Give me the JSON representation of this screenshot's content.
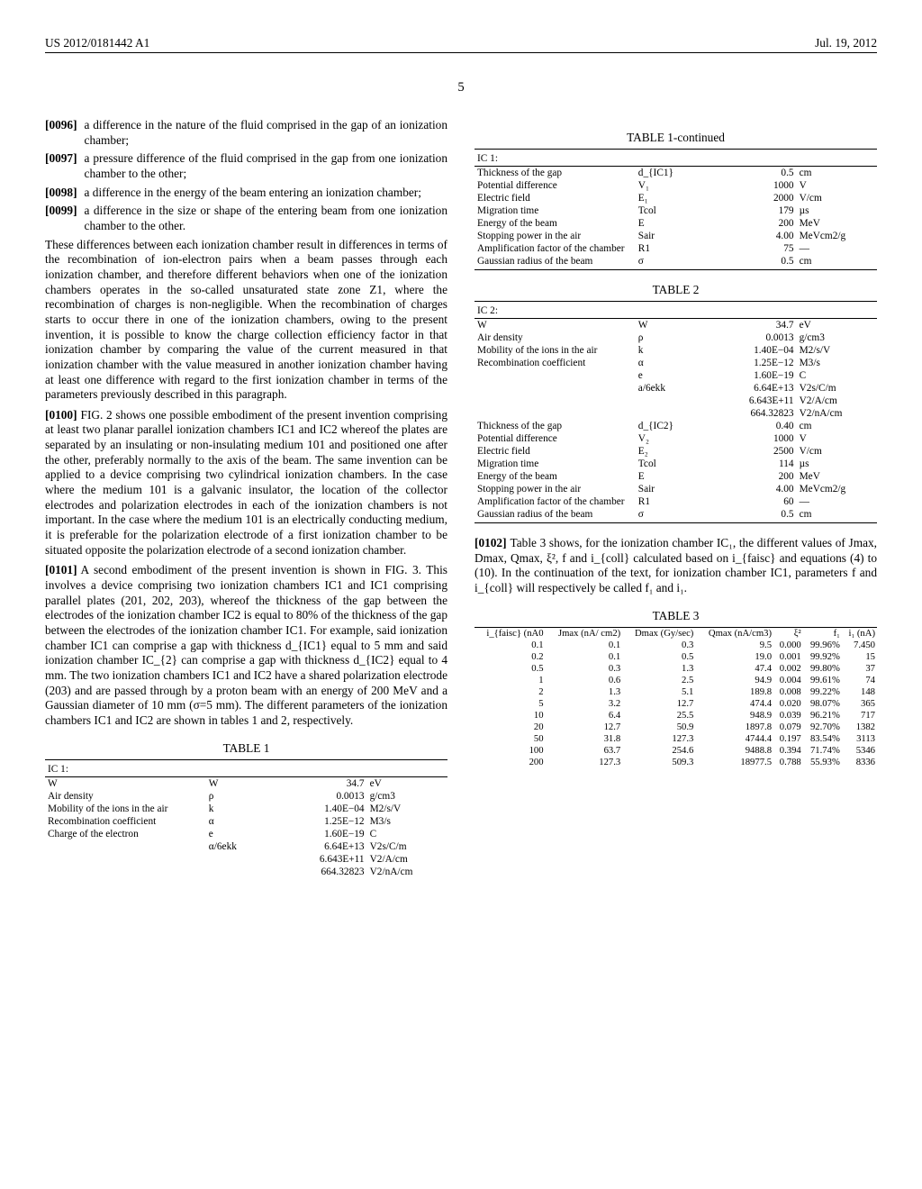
{
  "header": {
    "pub_number": "US 2012/0181442 A1",
    "date": "Jul. 19, 2012"
  },
  "page_number": "5",
  "left_col": {
    "items": [
      {
        "num": "[0096]",
        "text": "a difference in the nature of the fluid comprised in the gap of an ionization chamber;"
      },
      {
        "num": "[0097]",
        "text": "a pressure difference of the fluid comprised in the gap from one ionization chamber to the other;"
      },
      {
        "num": "[0098]",
        "text": "a difference in the energy of the beam entering an ionization chamber;"
      },
      {
        "num": "[0099]",
        "text": "a difference in the size or shape of the entering beam from one ionization chamber to the other."
      }
    ],
    "para1": "These differences between each ionization chamber result in differences in terms of the recombination of ion-electron pairs when a beam passes through each ionization chamber, and therefore different behaviors when one of the ionization chambers operates in the so-called unsaturated state zone Z1, where the recombination of charges is non-negligible. When the recombination of charges starts to occur there in one of the ionization chambers, owing to the present invention, it is possible to know the charge collection efficiency factor in that ionization chamber by comparing the value of the current measured in that ionization chamber with the value measured in another ionization chamber having at least one difference with regard to the first ionization chamber in terms of the parameters previously described in this paragraph.",
    "para2_num": "[0100]",
    "para2": "FIG. 2 shows one possible embodiment of the present invention comprising at least two planar parallel ionization chambers IC1 and IC2 whereof the plates are separated by an insulating or non-insulating medium 101 and positioned one after the other, preferably normally to the axis of the beam. The same invention can be applied to a device comprising two cylindrical ionization chambers. In the case where the medium 101 is a galvanic insulator, the location of the collector electrodes and polarization electrodes in each of the ionization chambers is not important. In the case where the medium 101 is an electrically conducting medium, it is preferable for the polarization electrode of a first ionization chamber to be situated opposite the polarization electrode of a second ionization chamber.",
    "para3_num": "[0101]",
    "para3": "A second embodiment of the present invention is shown in FIG. 3. This involves a device comprising two ionization chambers IC1 and IC1 comprising parallel plates (201, 202, 203), whereof the thickness of the gap between the electrodes of the ionization chamber IC2 is equal to 80% of the thickness of the gap between the electrodes of the ionization chamber IC1. For example, said ionization chamber IC1 can comprise a gap with thickness d_{IC1} equal to 5 mm and said ionization chamber IC_{2} can comprise a gap with thickness d_{IC2} equal to 4 mm. The two ionization chambers IC1 and IC2 have a shared polarization electrode (203) and are passed through by a proton beam with an energy of 200 MeV and a Gaussian diameter of 10 mm (σ=5 mm). The different parameters of the ionization chambers IC1 and IC2 are shown in tables 1 and 2, respectively."
  },
  "table1": {
    "caption": "TABLE 1",
    "section": "IC 1:",
    "rows": [
      [
        "W",
        "W",
        "34.7",
        "eV"
      ],
      [
        "Air density",
        "ρ",
        "0.0013",
        "g/cm3"
      ],
      [
        "Mobility of the ions in the air",
        "k",
        "1.40E−04",
        "M2/s/V"
      ],
      [
        "Recombination coefficient",
        "α",
        "1.25E−12",
        "M3/s"
      ],
      [
        "Charge of the electron",
        "e",
        "1.60E−19",
        "C"
      ],
      [
        "",
        "α/6ekk",
        "6.64E+13",
        "V2s/C/m"
      ],
      [
        "",
        "",
        "6.643E+11",
        "V2/A/cm"
      ],
      [
        "",
        "",
        "664.32823",
        "V2/nA/cm"
      ]
    ]
  },
  "table1_cont": {
    "caption": "TABLE 1-continued",
    "section": "IC 1:",
    "rows": [
      [
        "Thickness of the gap",
        "d_{IC1}",
        "0.5",
        "cm"
      ],
      [
        "Potential difference",
        "V₁",
        "1000",
        "V"
      ],
      [
        "Electric field",
        "E₁",
        "2000",
        "V/cm"
      ],
      [
        "Migration time",
        "Tcol",
        "179",
        "µs"
      ],
      [
        "Energy of the beam",
        "E",
        "200",
        "MeV"
      ],
      [
        "Stopping power in the air",
        "Sair",
        "4.00",
        "MeVcm2/g"
      ],
      [
        "Amplification factor of the chamber",
        "R1",
        "75",
        "—"
      ],
      [
        "Gaussian radius of the beam",
        "σ",
        "0.5",
        "cm"
      ]
    ]
  },
  "table2": {
    "caption": "TABLE 2",
    "section": "IC 2:",
    "rows": [
      [
        "W",
        "W",
        "34.7",
        "eV"
      ],
      [
        "Air density",
        "ρ",
        "0.0013",
        "g/cm3"
      ],
      [
        "Mobility of the ions in the air",
        "k",
        "1.40E−04",
        "M2/s/V"
      ],
      [
        "Recombination coefficient",
        "α",
        "1.25E−12",
        "M3/s"
      ],
      [
        "",
        "e",
        "1.60E−19",
        "C"
      ],
      [
        "",
        "a/6ekk",
        "6.64E+13",
        "V2s/C/m"
      ],
      [
        "",
        "",
        "6.643E+11",
        "V2/A/cm"
      ],
      [
        "",
        "",
        "664.32823",
        "V2/nA/cm"
      ],
      [
        "Thickness of the gap",
        "d_{IC2}",
        "0.40",
        "cm"
      ],
      [
        "Potential difference",
        "V₂",
        "1000",
        "V"
      ],
      [
        "Electric field",
        "E₂",
        "2500",
        "V/cm"
      ],
      [
        "Migration time",
        "Tcol",
        "114",
        "µs"
      ],
      [
        "Energy of the beam",
        "E",
        "200",
        "MeV"
      ],
      [
        "Stopping power in the air",
        "Sair",
        "4.00",
        "MeVcm2/g"
      ],
      [
        "Amplification factor of the chamber",
        "R1",
        "60",
        "—"
      ],
      [
        "Gaussian radius of the beam",
        "σ",
        "0.5",
        "cm"
      ]
    ]
  },
  "right_para_num": "[0102]",
  "right_para": "Table 3 shows, for the ionization chamber IC₁, the different values of Jmax, Dmax, Qmax, ξ², f and i_{coll} calculated based on i_{faisc} and equations (4) to (10). In the continuation of the text, for ionization chamber IC1, parameters f and i_{coll} will respectively be called f₁ and i₁.",
  "table3": {
    "caption": "TABLE 3",
    "headers": [
      "i_{faisc} (nA0",
      "Jmax (nA/ cm2)",
      "Dmax (Gy/sec)",
      "Qmax (nA/cm3)",
      "ξ²",
      "f₁",
      "i₁ (nA)"
    ],
    "rows": [
      [
        "0.1",
        "0.1",
        "0.3",
        "9.5",
        "0.000",
        "99.96%",
        "7.450"
      ],
      [
        "0.2",
        "0.1",
        "0.5",
        "19.0",
        "0.001",
        "99.92%",
        "15"
      ],
      [
        "0.5",
        "0.3",
        "1.3",
        "47.4",
        "0.002",
        "99.80%",
        "37"
      ],
      [
        "1",
        "0.6",
        "2.5",
        "94.9",
        "0.004",
        "99.61%",
        "74"
      ],
      [
        "2",
        "1.3",
        "5.1",
        "189.8",
        "0.008",
        "99.22%",
        "148"
      ],
      [
        "5",
        "3.2",
        "12.7",
        "474.4",
        "0.020",
        "98.07%",
        "365"
      ],
      [
        "10",
        "6.4",
        "25.5",
        "948.9",
        "0.039",
        "96.21%",
        "717"
      ],
      [
        "20",
        "12.7",
        "50.9",
        "1897.8",
        "0.079",
        "92.70%",
        "1382"
      ],
      [
        "50",
        "31.8",
        "127.3",
        "4744.4",
        "0.197",
        "83.54%",
        "3113"
      ],
      [
        "100",
        "63.7",
        "254.6",
        "9488.8",
        "0.394",
        "71.74%",
        "5346"
      ],
      [
        "200",
        "127.3",
        "509.3",
        "18977.5",
        "0.788",
        "55.93%",
        "8336"
      ]
    ]
  }
}
